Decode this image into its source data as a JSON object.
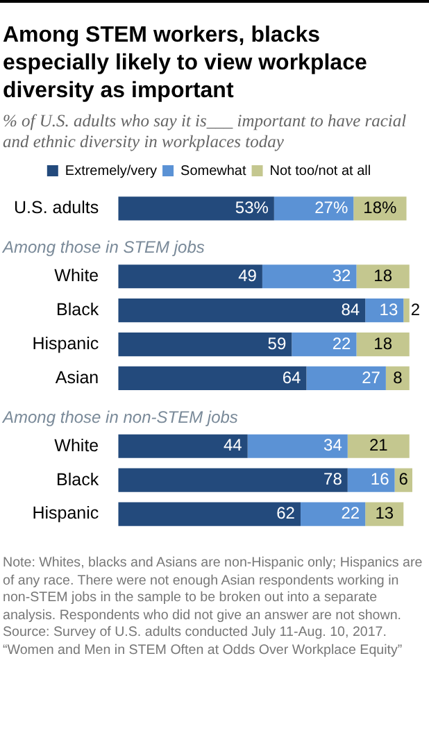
{
  "chart_data": {
    "type": "bar",
    "orientation": "horizontal",
    "stacked": true,
    "title": "Among STEM workers, blacks especially likely to view workplace diversity as important",
    "subtitle": "% of U.S. adults who say it is___ important to have racial and ethnic diversity in workplaces today",
    "categories": [
      "U.S. adults",
      null,
      "White",
      "Black",
      "Hispanic",
      "Asian",
      null,
      "White",
      "Black",
      "Hispanic"
    ],
    "series": [
      {
        "name": "Extremely/very",
        "color": "#234a7c",
        "values": [
          53,
          null,
          49,
          84,
          59,
          64,
          null,
          44,
          78,
          62
        ],
        "value_labels": [
          "53%",
          null,
          "49",
          "84",
          "59",
          "64",
          null,
          "44",
          "78",
          "62"
        ]
      },
      {
        "name": "Somewhat",
        "color": "#5b92d5",
        "values": [
          27,
          null,
          32,
          13,
          22,
          27,
          null,
          34,
          16,
          22
        ],
        "value_labels": [
          "27%",
          null,
          "32",
          "13",
          "22",
          "27",
          null,
          "34",
          "16",
          "22"
        ]
      },
      {
        "name": "Not too/not at all",
        "color": "#c4c78f",
        "values": [
          18,
          null,
          18,
          2,
          18,
          8,
          null,
          21,
          6,
          13
        ],
        "value_labels": [
          "18%",
          null,
          "18",
          "2",
          "18",
          "8",
          null,
          "21",
          "6",
          "13"
        ]
      }
    ],
    "xlim": [
      0,
      100
    ],
    "tick_labels": "y",
    "legend": "top",
    "grid": false,
    "annotations": [
      "Among those in STEM jobs",
      "Among those in non-STEM jobs",
      "Note: Whites, blacks and Asians are non-Hispanic only; Hispanics are of any race. There were not enough Asian respondents working in non-STEM jobs in the sample to be broken out into a separate analysis. Respondents who did not give an answer are not shown.",
      "Source: Survey of U.S. adults conducted July 11-Aug. 10, 2017.",
      "“Women and Men in STEM Often at Odds Over Workplace Equity”"
    ]
  }
}
